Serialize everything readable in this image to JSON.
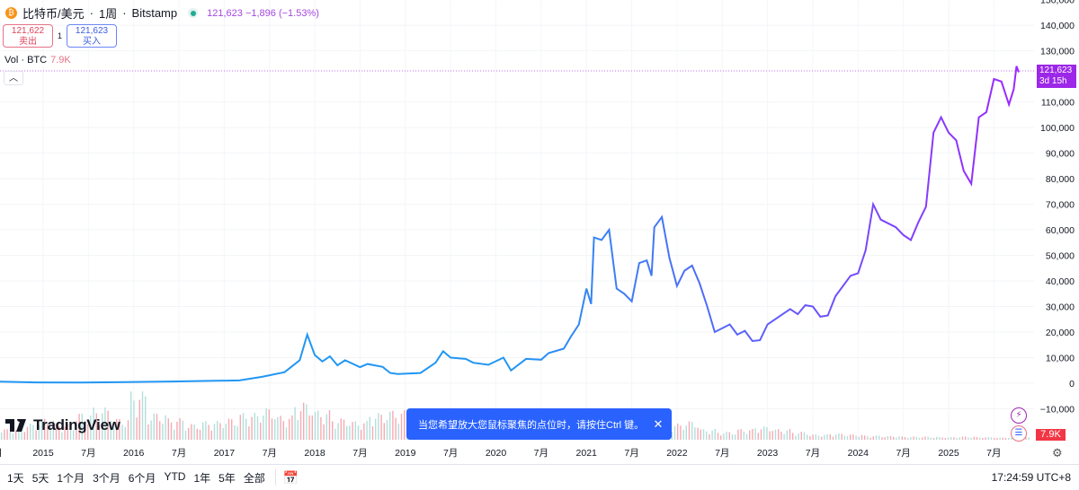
{
  "header": {
    "symbol": "比特币/美元",
    "interval": "1周",
    "exchange": "Bitstamp",
    "coin_icon": "bitcoin-icon",
    "last": "121,623",
    "change": "−1,896",
    "change_pct": "(−1.53%)"
  },
  "trade": {
    "sell_price": "121,622",
    "sell_label": "卖出",
    "spread": "1",
    "buy_price": "121,623",
    "buy_label": "买入"
  },
  "volume_legend": {
    "label": "Vol · BTC",
    "value": "7.9K"
  },
  "logo": "TradingView",
  "toast": {
    "text": "当您希望放大您鼠标聚焦的点位时，请按住Ctrl 键。",
    "close": "✕"
  },
  "price_axis": {
    "ticks": [
      "150,000",
      "140,000",
      "130,000",
      "110,000",
      "100,000",
      "90,000",
      "80,000",
      "70,000",
      "60,000",
      "50,000",
      "40,000",
      "30,000",
      "20,000",
      "10,000",
      "0",
      "−10,000"
    ],
    "last_label": "121,623",
    "countdown": "3d 15h",
    "volume_label": "7.9K"
  },
  "time_axis": {
    "ticks": [
      "月",
      "2015",
      "7月",
      "2016",
      "7月",
      "2017",
      "7月",
      "2018",
      "7月",
      "2019",
      "7月",
      "2020",
      "7月",
      "2021",
      "7月",
      "2022",
      "7月",
      "2023",
      "7月",
      "2024",
      "7月",
      "2025",
      "7月"
    ]
  },
  "bottom_bar": {
    "ranges": [
      "1天",
      "5天",
      "1个月",
      "3个月",
      "6个月",
      "YTD",
      "1年",
      "5年",
      "全部"
    ],
    "time": "17:24:59 UTC+8"
  },
  "colors": {
    "line_start": "#2196f3",
    "line_end": "#9c27ff",
    "up_vol": "#b2dfdb",
    "down_vol": "#f7a9b1",
    "accent": "#2962ff"
  },
  "chart_data": {
    "type": "line",
    "ylim": [
      -20000,
      150000
    ],
    "series": [
      {
        "values": [
          [
            "2014-06",
            600
          ],
          [
            "2014-12",
            330
          ],
          [
            "2015-06",
            240
          ],
          [
            "2015-12",
            430
          ],
          [
            "2016-06",
            650
          ],
          [
            "2016-12",
            960
          ],
          [
            "2017-03",
            1100
          ],
          [
            "2017-06",
            2500
          ],
          [
            "2017-09",
            4300
          ],
          [
            "2017-11",
            9000
          ],
          [
            "2017-12",
            19000
          ],
          [
            "2018-01",
            11000
          ],
          [
            "2018-02",
            8500
          ],
          [
            "2018-03",
            10500
          ],
          [
            "2018-04",
            7000
          ],
          [
            "2018-05",
            9000
          ],
          [
            "2018-07",
            6300
          ],
          [
            "2018-08",
            7500
          ],
          [
            "2018-10",
            6400
          ],
          [
            "2018-11",
            4000
          ],
          [
            "2018-12",
            3600
          ],
          [
            "2019-03",
            4000
          ],
          [
            "2019-05",
            8000
          ],
          [
            "2019-06",
            12500
          ],
          [
            "2019-07",
            10000
          ],
          [
            "2019-09",
            9500
          ],
          [
            "2019-10",
            8000
          ],
          [
            "2019-12",
            7200
          ],
          [
            "2020-02",
            10000
          ],
          [
            "2020-03",
            5000
          ],
          [
            "2020-05",
            9500
          ],
          [
            "2020-07",
            9200
          ],
          [
            "2020-08",
            11800
          ],
          [
            "2020-10",
            13500
          ],
          [
            "2020-11",
            18500
          ],
          [
            "2020-12",
            23000
          ],
          [
            "2021-01",
            37000
          ],
          [
            "2021-01-20",
            31000
          ],
          [
            "2021-02",
            57000
          ],
          [
            "2021-03",
            56000
          ],
          [
            "2021-04",
            60000
          ],
          [
            "2021-05",
            37000
          ],
          [
            "2021-06",
            35000
          ],
          [
            "2021-07",
            32000
          ],
          [
            "2021-08",
            47000
          ],
          [
            "2021-09",
            48000
          ],
          [
            "2021-09-20",
            42000
          ],
          [
            "2021-10",
            61000
          ],
          [
            "2021-11",
            65000
          ],
          [
            "2021-12",
            49000
          ],
          [
            "2022-01",
            38000
          ],
          [
            "2022-02",
            44000
          ],
          [
            "2022-03",
            46000
          ],
          [
            "2022-04",
            39000
          ],
          [
            "2022-05",
            30000
          ],
          [
            "2022-06",
            20000
          ],
          [
            "2022-08",
            23000
          ],
          [
            "2022-09",
            19000
          ],
          [
            "2022-10",
            20500
          ],
          [
            "2022-11",
            16500
          ],
          [
            "2022-12",
            16800
          ],
          [
            "2023-01",
            23000
          ],
          [
            "2023-03",
            27000
          ],
          [
            "2023-04",
            29000
          ],
          [
            "2023-05",
            27000
          ],
          [
            "2023-06",
            30500
          ],
          [
            "2023-07",
            30000
          ],
          [
            "2023-08",
            26000
          ],
          [
            "2023-09",
            26500
          ],
          [
            "2023-10",
            34000
          ],
          [
            "2023-12",
            42000
          ],
          [
            "2024-01",
            43000
          ],
          [
            "2024-02",
            52000
          ],
          [
            "2024-03",
            70000
          ],
          [
            "2024-04",
            64000
          ],
          [
            "2024-06",
            61000
          ],
          [
            "2024-07",
            58000
          ],
          [
            "2024-08",
            56000
          ],
          [
            "2024-09",
            63000
          ],
          [
            "2024-10",
            69000
          ],
          [
            "2024-11",
            98000
          ],
          [
            "2024-12",
            104000
          ],
          [
            "2025-01",
            98000
          ],
          [
            "2025-02",
            95000
          ],
          [
            "2025-03",
            83000
          ],
          [
            "2025-04",
            78000
          ],
          [
            "2025-05",
            104000
          ],
          [
            "2025-06",
            106000
          ],
          [
            "2025-07",
            119000
          ],
          [
            "2025-08",
            118000
          ],
          [
            "2025-09",
            109000
          ],
          [
            "2025-09-20",
            115000
          ],
          [
            "2025-10",
            124000
          ],
          [
            "2025-10-10",
            121623
          ]
        ]
      }
    ],
    "volume_relative": [
      0.2,
      0.3,
      0.4,
      0.3,
      0.5,
      0.6,
      0.4,
      0.9,
      0.5,
      0.4,
      0.3,
      0.35,
      0.4,
      0.5,
      0.6,
      0.45,
      0.7,
      0.55,
      0.4,
      0.35,
      0.5,
      0.55,
      0.3,
      0.25,
      0.3,
      0.45,
      0.5,
      0.35,
      0.3,
      0.4,
      0.45,
      0.35,
      0.3,
      0.25,
      0.2,
      0.25,
      0.3,
      0.35,
      0.2,
      0.15,
      0.2,
      0.25,
      0.2,
      0.15,
      0.1,
      0.12,
      0.1,
      0.08,
      0.07,
      0.06,
      0.06,
      0.05,
      0.06,
      0.05,
      0.04,
      0.05
    ]
  }
}
